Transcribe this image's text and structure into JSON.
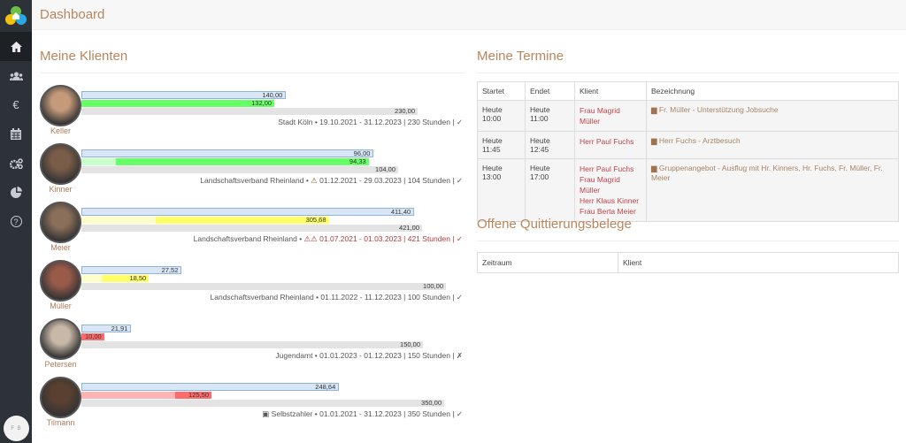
{
  "sidebar": {
    "items": [
      {
        "icon": "home-icon",
        "active": true
      },
      {
        "icon": "users-icon"
      },
      {
        "icon": "euro-icon",
        "glyph": "€"
      },
      {
        "icon": "calendar-icon"
      },
      {
        "icon": "gears-icon"
      },
      {
        "icon": "pie-chart-icon"
      },
      {
        "icon": "help-icon",
        "glyph": "?"
      }
    ],
    "user_initials": "F B"
  },
  "header": {
    "title": "Dashboard"
  },
  "klienten": {
    "title": "Meine Klienten",
    "items": [
      {
        "name": "Keller",
        "b1": 140.0,
        "b1_label": "140,00",
        "b2": 132.0,
        "b2_label": "132,00",
        "b2_light": 0,
        "b3": 230.0,
        "b3_label": "230,00",
        "color": "#66ff66",
        "info_pre": "Stadt Köln • ",
        "warn": "",
        "info_main": "19.10.2021 - 31.12.2023 | 230 Stunden | ✓",
        "alert": false,
        "face": "#c49a7a"
      },
      {
        "name": "Kinner",
        "b1": 96.0,
        "b1_label": "96,00",
        "b2": 94.33,
        "b2_label": "94,33",
        "b2_light": 0.12,
        "b3": 104.0,
        "b3_label": "104,00",
        "color": "#66ff66",
        "info_pre": "Landschaftsverband Rheinland • ",
        "warn": "⚠",
        "info_main": " 01.12.2021 - 29.03.2023 | 104 Stunden | ✓",
        "alert": false,
        "face": "#7a5d48"
      },
      {
        "name": "Meier",
        "b1": 411.4,
        "b1_label": "411,40",
        "b2": 305.68,
        "b2_label": "305,68",
        "b2_light": 0.3,
        "b3": 421.0,
        "b3_label": "421,00",
        "color": "#ffff66",
        "info_pre": "Landschaftsverband Rheinland • ",
        "warn": "⚠⚠",
        "info_main": " 01.07.2021 - 01.03.2023 | 421 Stunden | ✓",
        "alert": true,
        "face": "#8a6f5a"
      },
      {
        "name": "Müller",
        "b1": 27.52,
        "b1_label": "27,52",
        "b2": 18.5,
        "b2_label": "18,50",
        "b2_light": 0.3,
        "b3": 100.0,
        "b3_label": "100,00",
        "color": "#ffff66",
        "info_pre": "Landschaftsverband Rheinland • ",
        "warn": "",
        "info_main": "01.11.2022 - 11.12.2023 | 100 Stunden | ✓",
        "alert": false,
        "face": "#9a5a4a"
      },
      {
        "name": "Petersen",
        "b1": 21.91,
        "b1_label": "21,91",
        "b2": 10.0,
        "b2_label": "10,00",
        "b2_light": 0,
        "b3": 150.0,
        "b3_label": "150,00",
        "color": "#ff6b6b",
        "info_pre": "Jugendamt • ",
        "warn": "",
        "info_main": "01.01.2023 - 01.12.2023 | 150 Stunden | ✗",
        "alert": false,
        "face": "#c8b8a8"
      },
      {
        "name": "Tilmann",
        "b1": 248.64,
        "b1_label": "248,64",
        "b2": 125.5,
        "b2_label": "125,50",
        "b2_light": 0,
        "b3": 350.0,
        "b3_label": "350,00",
        "color": "#ff6b6b",
        "b2_pale": true,
        "info_pre": "▣ Selbstzahler • ",
        "warn": "",
        "info_main": "01.01.2021 - 31.12.2023 | 350 Stunden | ✓",
        "alert": false,
        "face": "#5a4030"
      }
    ]
  },
  "termine": {
    "title": "Meine Termine",
    "headers": [
      "Startet",
      "Endet",
      "Klient",
      "Bezeichnung"
    ],
    "rows": [
      {
        "start": "Heute 10:00",
        "end": "Heute 11:00",
        "clients": [
          "Frau Magrid Müller"
        ],
        "desc": "Fr. Müller - Unterstützung Jobsuche"
      },
      {
        "start": "Heute 11:45",
        "end": "Heute 12:45",
        "clients": [
          "Herr Paul Fuchs"
        ],
        "desc": "Herr Fuchs - Arztbesuch"
      },
      {
        "start": "Heute 13:00",
        "end": "Heute 17:00",
        "clients": [
          "Herr Paul Fuchs",
          "Frau Magrid Müller",
          "Herr Klaus Kinner",
          "Frau Berta Meier"
        ],
        "desc": "Gruppenangebot - Ausflug mit Hr. Kinners, Hr. Fuchs, Fr. Müller, Fr. Meier"
      }
    ]
  },
  "quittierung": {
    "title": "Offene Quittierungsbelege",
    "headers": [
      "Zeitraum",
      "Klient"
    ]
  }
}
